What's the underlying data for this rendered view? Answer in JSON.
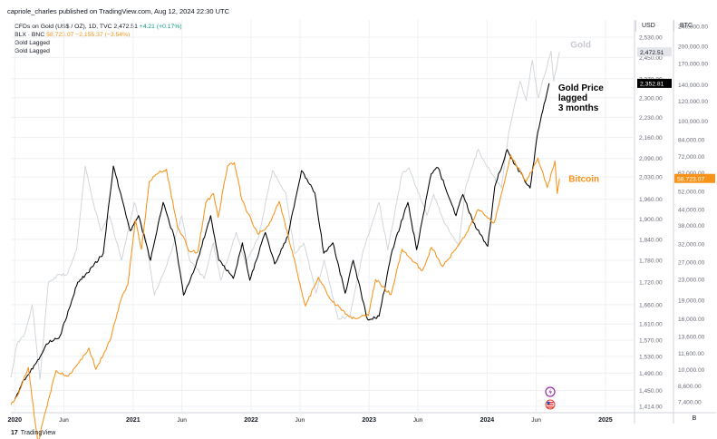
{
  "header": {
    "publisher_line": "capriole_charles published on TradingView.com, Aug 12, 2024 22:30 UTC"
  },
  "legend": {
    "line1_symbol": "CFDs on Gold (US$ / OZ), 1D, TVC",
    "line1_price": "2,472.51",
    "line1_change": "+4.21 (+0.17%)",
    "line2_symbol": "BLX · BNC",
    "line2_price": "58,723.07",
    "line2_change": "−2,155.37 (−3.54%)",
    "line3": "Gold Lagged",
    "line4": "Gold Lagged"
  },
  "axes": {
    "usd_label": "USD",
    "btc_label": "BTC",
    "footer_badge": "B"
  },
  "footer": {
    "brand_mark": "17",
    "brand_name": "TradingView"
  },
  "colors": {
    "gold": "#cfd2d8",
    "gold_lagged": "#000000",
    "bitcoin": "#f7931a",
    "grid": "#eef0f3",
    "text": "#131722"
  },
  "icons": [
    "lightning-icon",
    "us-flag-icon"
  ],
  "chart_data": {
    "type": "line",
    "x_tick_labels": [
      "2020",
      "Jun",
      "2021",
      "Jun",
      "2022",
      "Jun",
      "2023",
      "Jun",
      "2024",
      "Jun",
      "2025"
    ],
    "x_ticks": [
      "2020-01-01",
      "2020-06-01",
      "2021-01-01",
      "2021-06-01",
      "2022-01-01",
      "2022-06-01",
      "2023-01-01",
      "2023-06-01",
      "2024-01-01",
      "2024-06-01",
      "2025-01-01"
    ],
    "xlim": [
      "2019-12-20",
      "2025-04-01"
    ],
    "usd_axis": {
      "ticks": [
        1414,
        1450,
        1490,
        1530,
        1570,
        1610,
        1660,
        1720,
        1780,
        1840,
        1900,
        1960,
        2030,
        2090,
        2160,
        2230,
        2300,
        2370,
        2450,
        2530
      ],
      "tick_labels": [
        "1,414.00",
        "1,450.00",
        "1,490.00",
        "1,530.00",
        "1,570.00",
        "1,610.00",
        "1,660.00",
        "1,720.00",
        "1,780.00",
        "1,840.00",
        "1,900.00",
        "1,960.00",
        "2,030.00",
        "2,090.00",
        "2,160.00",
        "2,230.00",
        "2,300.00",
        "2,370.00",
        "2,450.00",
        "2,530.00"
      ],
      "scale": "log",
      "ylim": [
        1400,
        2600
      ]
    },
    "btc_axis": {
      "ticks": [
        7400,
        8600,
        10000,
        11600,
        13600,
        16000,
        19000,
        23000,
        27000,
        32000,
        38000,
        44000,
        52000,
        62000,
        72000,
        84000,
        100000,
        120000,
        140000,
        170000,
        200000,
        240000
      ],
      "tick_labels": [
        "7,400.00",
        "8,600.00",
        "10,000.00",
        "11,600.00",
        "13,600.00",
        "16,000.00",
        "19,000.00",
        "23,000.00",
        "27,000.00",
        "32,000.00",
        "38,000.00",
        "44,000.00",
        "52,000.00",
        "62,000.00",
        "72,000.00",
        "84,000.00",
        "100,000.00",
        "120,000.00",
        "140,000.00",
        "170,000.00",
        "200,000.00",
        "240,000.00"
      ],
      "scale": "log",
      "ylim": [
        6700,
        255000
      ]
    },
    "price_tags": [
      {
        "axis": "usd",
        "value": 2472.51,
        "label": "2,472.51",
        "bg": "#e3e5ea",
        "fg": "#131722"
      },
      {
        "axis": "usd",
        "value": 2352.81,
        "label": "2,352.81",
        "bg": "#000000",
        "fg": "#ffffff"
      },
      {
        "axis": "btc",
        "value": 58723.07,
        "label": "58,723.07",
        "bg": "#f7931a",
        "fg": "#ffffff"
      }
    ],
    "annotations": [
      {
        "text": "Gold",
        "series": "gold"
      },
      {
        "text": "Gold Price lagged 3 months",
        "lines": [
          "Gold Price",
          "lagged",
          "3 months"
        ],
        "series": "gold_lagged"
      },
      {
        "text": "Bitcoin",
        "series": "bitcoin"
      }
    ],
    "series": [
      {
        "key": "gold",
        "axis": "usd",
        "points": [
          [
            "2019-12-20",
            1480
          ],
          [
            "2020-01-08",
            1560
          ],
          [
            "2020-02-01",
            1585
          ],
          [
            "2020-02-24",
            1660
          ],
          [
            "2020-03-19",
            1475
          ],
          [
            "2020-04-14",
            1720
          ],
          [
            "2020-05-18",
            1740
          ],
          [
            "2020-06-10",
            1740
          ],
          [
            "2020-07-10",
            1810
          ],
          [
            "2020-08-06",
            2065
          ],
          [
            "2020-08-28",
            1960
          ],
          [
            "2020-09-24",
            1865
          ],
          [
            "2020-10-20",
            1910
          ],
          [
            "2020-11-26",
            1780
          ],
          [
            "2021-01-05",
            1950
          ],
          [
            "2021-02-10",
            1840
          ],
          [
            "2021-03-08",
            1685
          ],
          [
            "2021-04-15",
            1765
          ],
          [
            "2021-06-01",
            1910
          ],
          [
            "2021-06-25",
            1780
          ],
          [
            "2021-08-09",
            1730
          ],
          [
            "2021-09-06",
            1830
          ],
          [
            "2021-09-29",
            1725
          ],
          [
            "2021-11-16",
            1860
          ],
          [
            "2021-12-15",
            1770
          ],
          [
            "2022-01-25",
            1850
          ],
          [
            "2022-03-08",
            2050
          ],
          [
            "2022-04-18",
            1980
          ],
          [
            "2022-05-16",
            1800
          ],
          [
            "2022-06-13",
            1830
          ],
          [
            "2022-07-21",
            1690
          ],
          [
            "2022-08-15",
            1780
          ],
          [
            "2022-09-28",
            1622
          ],
          [
            "2022-11-03",
            1630
          ],
          [
            "2022-12-14",
            1810
          ],
          [
            "2023-02-01",
            1950
          ],
          [
            "2023-02-28",
            1810
          ],
          [
            "2023-04-13",
            2040
          ],
          [
            "2023-05-04",
            2060
          ],
          [
            "2023-06-29",
            1910
          ],
          [
            "2023-07-20",
            1975
          ],
          [
            "2023-08-21",
            1890
          ],
          [
            "2023-10-05",
            1820
          ],
          [
            "2023-10-27",
            2000
          ],
          [
            "2023-12-04",
            2120
          ],
          [
            "2023-12-28",
            2070
          ],
          [
            "2024-02-14",
            1995
          ],
          [
            "2024-03-08",
            2180
          ],
          [
            "2024-04-12",
            2360
          ],
          [
            "2024-05-01",
            2290
          ],
          [
            "2024-05-20",
            2440
          ],
          [
            "2024-06-07",
            2300
          ],
          [
            "2024-07-17",
            2475
          ],
          [
            "2024-07-25",
            2360
          ],
          [
            "2024-08-12",
            2472
          ]
        ]
      },
      {
        "key": "gold_lagged",
        "axis": "usd",
        "points": [
          [
            "2020-01-01",
            1430
          ],
          [
            "2020-01-25",
            1470
          ],
          [
            "2020-03-08",
            1515
          ],
          [
            "2020-04-08",
            1560
          ],
          [
            "2020-05-20",
            1580
          ],
          [
            "2020-06-22",
            1660
          ],
          [
            "2020-07-14",
            1720
          ],
          [
            "2020-08-14",
            1745
          ],
          [
            "2020-09-03",
            1770
          ],
          [
            "2020-10-01",
            1800
          ],
          [
            "2020-11-01",
            2065
          ],
          [
            "2020-11-28",
            1960
          ],
          [
            "2020-12-23",
            1865
          ],
          [
            "2021-01-18",
            1910
          ],
          [
            "2021-02-24",
            1780
          ],
          [
            "2021-04-04",
            1950
          ],
          [
            "2021-05-10",
            1840
          ],
          [
            "2021-06-06",
            1685
          ],
          [
            "2021-07-14",
            1765
          ],
          [
            "2021-08-29",
            1910
          ],
          [
            "2021-09-23",
            1780
          ],
          [
            "2021-11-07",
            1730
          ],
          [
            "2021-12-05",
            1830
          ],
          [
            "2021-12-28",
            1725
          ],
          [
            "2022-02-14",
            1860
          ],
          [
            "2022-03-15",
            1770
          ],
          [
            "2022-04-25",
            1850
          ],
          [
            "2022-06-06",
            2050
          ],
          [
            "2022-07-17",
            1980
          ],
          [
            "2022-08-14",
            1800
          ],
          [
            "2022-09-11",
            1830
          ],
          [
            "2022-10-19",
            1690
          ],
          [
            "2022-11-13",
            1780
          ],
          [
            "2022-12-27",
            1622
          ],
          [
            "2023-02-01",
            1630
          ],
          [
            "2023-03-14",
            1810
          ],
          [
            "2023-05-01",
            1950
          ],
          [
            "2023-05-28",
            1810
          ],
          [
            "2023-07-12",
            2040
          ],
          [
            "2023-08-02",
            2060
          ],
          [
            "2023-09-27",
            1910
          ],
          [
            "2023-10-18",
            1975
          ],
          [
            "2023-11-19",
            1890
          ],
          [
            "2024-01-03",
            1820
          ],
          [
            "2024-01-25",
            2000
          ],
          [
            "2024-03-03",
            2120
          ],
          [
            "2024-03-27",
            2070
          ],
          [
            "2024-05-13",
            1995
          ],
          [
            "2024-06-06",
            2180
          ],
          [
            "2024-07-11",
            2352.81
          ]
        ]
      },
      {
        "key": "bitcoin",
        "axis": "btc",
        "points": [
          [
            "2019-12-20",
            7200
          ],
          [
            "2020-01-08",
            7800
          ],
          [
            "2020-02-12",
            10200
          ],
          [
            "2020-03-13",
            5000
          ],
          [
            "2020-04-01",
            6500
          ],
          [
            "2020-05-08",
            9900
          ],
          [
            "2020-06-15",
            9400
          ],
          [
            "2020-07-27",
            11000
          ],
          [
            "2020-08-17",
            12200
          ],
          [
            "2020-09-08",
            10000
          ],
          [
            "2020-10-21",
            13000
          ],
          [
            "2020-11-24",
            19000
          ],
          [
            "2020-12-16",
            22000
          ],
          [
            "2021-01-08",
            40000
          ],
          [
            "2021-01-27",
            30500
          ],
          [
            "2021-02-20",
            57000
          ],
          [
            "2021-03-13",
            61000
          ],
          [
            "2021-04-14",
            64000
          ],
          [
            "2021-05-19",
            37000
          ],
          [
            "2021-06-07",
            34000
          ],
          [
            "2021-06-22",
            30000
          ],
          [
            "2021-07-20",
            29700
          ],
          [
            "2021-08-14",
            47000
          ],
          [
            "2021-09-07",
            51000
          ],
          [
            "2021-09-21",
            41000
          ],
          [
            "2021-10-20",
            66000
          ],
          [
            "2021-11-10",
            68000
          ],
          [
            "2021-12-04",
            48000
          ],
          [
            "2022-01-22",
            35000
          ],
          [
            "2022-02-24",
            38000
          ],
          [
            "2022-03-29",
            47500
          ],
          [
            "2022-05-12",
            28500
          ],
          [
            "2022-06-18",
            18000
          ],
          [
            "2022-07-28",
            23500
          ],
          [
            "2022-09-06",
            19000
          ],
          [
            "2022-11-09",
            16000
          ],
          [
            "2022-12-30",
            16500
          ],
          [
            "2023-01-21",
            23000
          ],
          [
            "2023-03-10",
            20000
          ],
          [
            "2023-04-13",
            30500
          ],
          [
            "2023-06-15",
            25000
          ],
          [
            "2023-07-13",
            31000
          ],
          [
            "2023-08-17",
            26000
          ],
          [
            "2023-10-23",
            34000
          ],
          [
            "2023-12-05",
            44000
          ],
          [
            "2024-01-23",
            39000
          ],
          [
            "2024-02-28",
            60000
          ],
          [
            "2024-03-14",
            73000
          ],
          [
            "2024-05-01",
            57000
          ],
          [
            "2024-06-06",
            71000
          ],
          [
            "2024-07-05",
            54000
          ],
          [
            "2024-07-29",
            69000
          ],
          [
            "2024-08-05",
            51000
          ],
          [
            "2024-08-12",
            58723.07
          ]
        ]
      }
    ]
  }
}
